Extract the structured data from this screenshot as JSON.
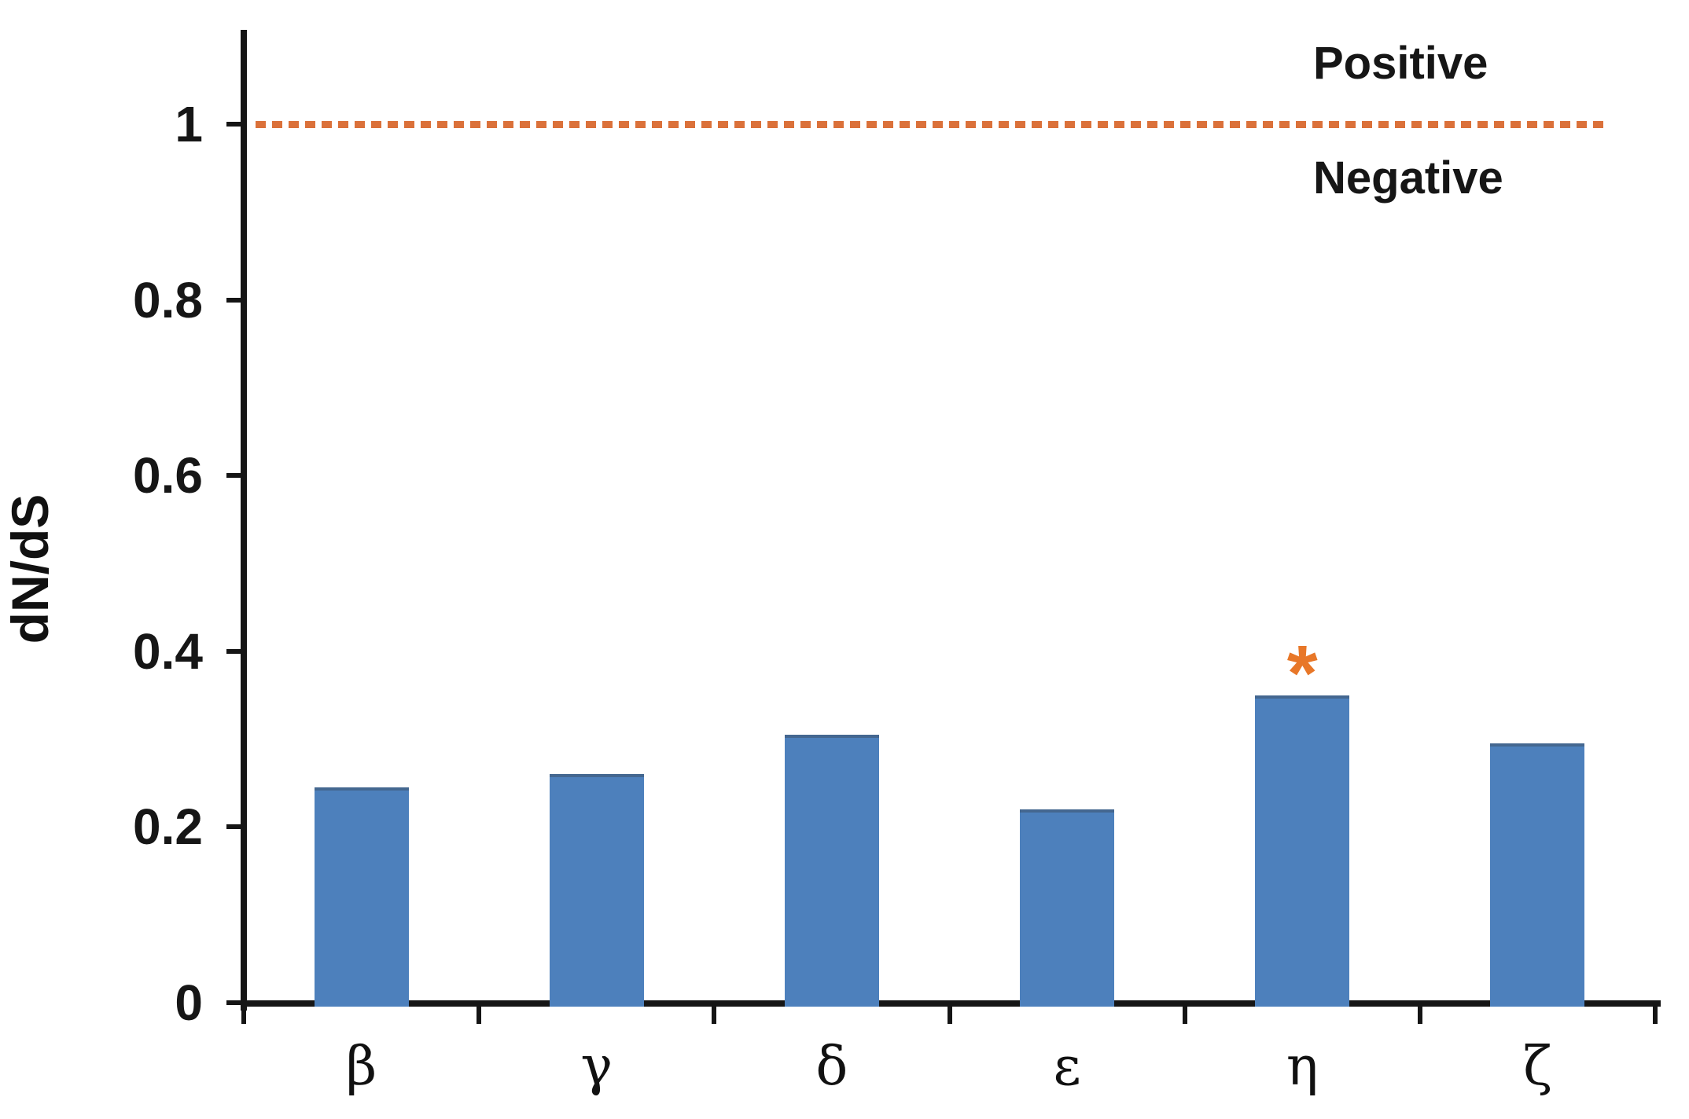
{
  "chart_data": {
    "type": "bar",
    "title": "",
    "xlabel": "",
    "ylabel": "dN/dS",
    "categories": [
      "β",
      "γ",
      "δ",
      "ε",
      "η",
      "ζ"
    ],
    "values": [
      0.245,
      0.26,
      0.305,
      0.22,
      0.35,
      0.295
    ],
    "yticks": [
      0,
      0.2,
      0.4,
      0.6,
      0.8,
      1
    ],
    "ytick_labels": [
      "0",
      "0.2",
      "0.4",
      "0.6",
      "0.8",
      "1"
    ],
    "ylim": [
      0,
      1.12
    ],
    "grid": false,
    "legend_position": "none",
    "bar_color": "#4D80BC",
    "axis_color": "#151515",
    "threshold_line": {
      "value": 1,
      "style": "dashed",
      "color": "#DB713A",
      "label_above": "Positive",
      "label_below": "Negative"
    },
    "annotations": [
      {
        "category": "η",
        "marker": "*",
        "color": "#E87728",
        "meaning": "significant"
      }
    ]
  }
}
